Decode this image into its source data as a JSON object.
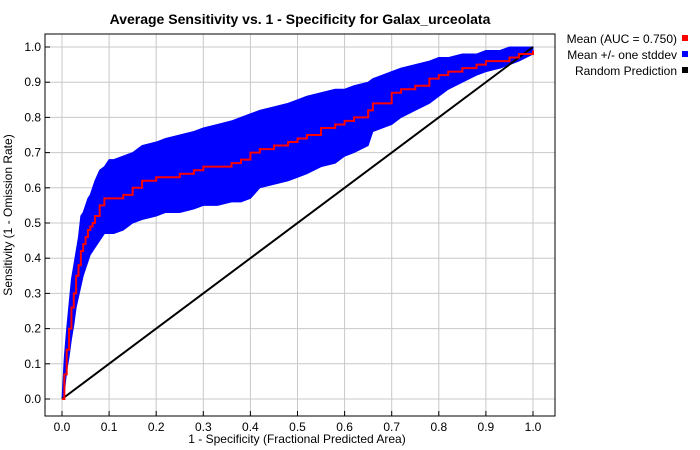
{
  "chart_data": {
    "type": "line",
    "title": "Average Sensitivity vs. 1 - Specificity for Galax_urceolata",
    "xlabel": "1 - Specificity (Fractional Predicted Area)",
    "ylabel": "Sensitivity (1 - Omission Rate)",
    "xlim": [
      0,
      1
    ],
    "ylim": [
      0,
      1
    ],
    "x_ticks": [
      "0.0",
      "0.1",
      "0.2",
      "0.3",
      "0.4",
      "0.5",
      "0.6",
      "0.7",
      "0.8",
      "0.9",
      "1.0"
    ],
    "y_ticks": [
      "0.0",
      "0.1",
      "0.2",
      "0.3",
      "0.4",
      "0.5",
      "0.6",
      "0.7",
      "0.8",
      "0.9",
      "1.0"
    ],
    "grid": true,
    "legend_position": "outside-top-right",
    "series": [
      {
        "name": "Mean (AUC = 0.750)",
        "color": "#ff0000",
        "x": [
          0.0,
          0.005,
          0.01,
          0.015,
          0.02,
          0.025,
          0.03,
          0.035,
          0.04,
          0.045,
          0.05,
          0.055,
          0.06,
          0.065,
          0.07,
          0.08,
          0.09,
          0.1,
          0.11,
          0.13,
          0.15,
          0.17,
          0.2,
          0.22,
          0.25,
          0.28,
          0.3,
          0.33,
          0.36,
          0.38,
          0.4,
          0.42,
          0.45,
          0.48,
          0.5,
          0.52,
          0.55,
          0.58,
          0.6,
          0.62,
          0.65,
          0.66,
          0.7,
          0.72,
          0.75,
          0.78,
          0.8,
          0.82,
          0.85,
          0.88,
          0.9,
          0.93,
          0.95,
          0.97,
          1.0
        ],
        "values": [
          0.0,
          0.07,
          0.14,
          0.2,
          0.26,
          0.3,
          0.35,
          0.38,
          0.42,
          0.44,
          0.46,
          0.48,
          0.49,
          0.5,
          0.52,
          0.55,
          0.57,
          0.57,
          0.57,
          0.58,
          0.6,
          0.62,
          0.63,
          0.63,
          0.64,
          0.65,
          0.66,
          0.66,
          0.67,
          0.68,
          0.7,
          0.71,
          0.72,
          0.73,
          0.74,
          0.75,
          0.77,
          0.78,
          0.79,
          0.8,
          0.82,
          0.84,
          0.87,
          0.88,
          0.89,
          0.91,
          0.92,
          0.93,
          0.94,
          0.95,
          0.96,
          0.96,
          0.97,
          0.98,
          0.99
        ]
      },
      {
        "name": "Mean +/- one stddev",
        "color": "#0000ff",
        "x": [
          0.0,
          0.005,
          0.01,
          0.015,
          0.02,
          0.025,
          0.03,
          0.035,
          0.04,
          0.045,
          0.05,
          0.055,
          0.06,
          0.065,
          0.07,
          0.08,
          0.09,
          0.1,
          0.11,
          0.13,
          0.15,
          0.17,
          0.2,
          0.22,
          0.25,
          0.28,
          0.3,
          0.33,
          0.36,
          0.38,
          0.4,
          0.42,
          0.45,
          0.48,
          0.5,
          0.52,
          0.55,
          0.58,
          0.6,
          0.62,
          0.65,
          0.66,
          0.7,
          0.72,
          0.75,
          0.78,
          0.8,
          0.82,
          0.85,
          0.88,
          0.9,
          0.93,
          0.95,
          0.97,
          1.0
        ],
        "upper": [
          0.0,
          0.12,
          0.2,
          0.27,
          0.34,
          0.38,
          0.42,
          0.46,
          0.52,
          0.53,
          0.55,
          0.57,
          0.58,
          0.6,
          0.62,
          0.65,
          0.66,
          0.68,
          0.68,
          0.69,
          0.7,
          0.72,
          0.73,
          0.74,
          0.75,
          0.76,
          0.77,
          0.78,
          0.79,
          0.8,
          0.81,
          0.82,
          0.83,
          0.84,
          0.85,
          0.86,
          0.87,
          0.88,
          0.88,
          0.89,
          0.9,
          0.91,
          0.93,
          0.94,
          0.95,
          0.96,
          0.97,
          0.97,
          0.98,
          0.98,
          0.99,
          0.99,
          1.0,
          1.0,
          1.0
        ],
        "lower": [
          0.0,
          0.02,
          0.08,
          0.12,
          0.17,
          0.21,
          0.26,
          0.29,
          0.32,
          0.35,
          0.37,
          0.39,
          0.41,
          0.42,
          0.43,
          0.45,
          0.47,
          0.47,
          0.47,
          0.48,
          0.5,
          0.51,
          0.52,
          0.53,
          0.53,
          0.54,
          0.55,
          0.55,
          0.56,
          0.56,
          0.57,
          0.6,
          0.61,
          0.62,
          0.63,
          0.64,
          0.66,
          0.67,
          0.69,
          0.7,
          0.72,
          0.76,
          0.78,
          0.8,
          0.82,
          0.84,
          0.86,
          0.88,
          0.9,
          0.92,
          0.93,
          0.94,
          0.95,
          0.96,
          0.98
        ]
      },
      {
        "name": "Random Prediction",
        "color": "#000000",
        "x": [
          0,
          1
        ],
        "values": [
          0,
          1
        ]
      }
    ]
  }
}
